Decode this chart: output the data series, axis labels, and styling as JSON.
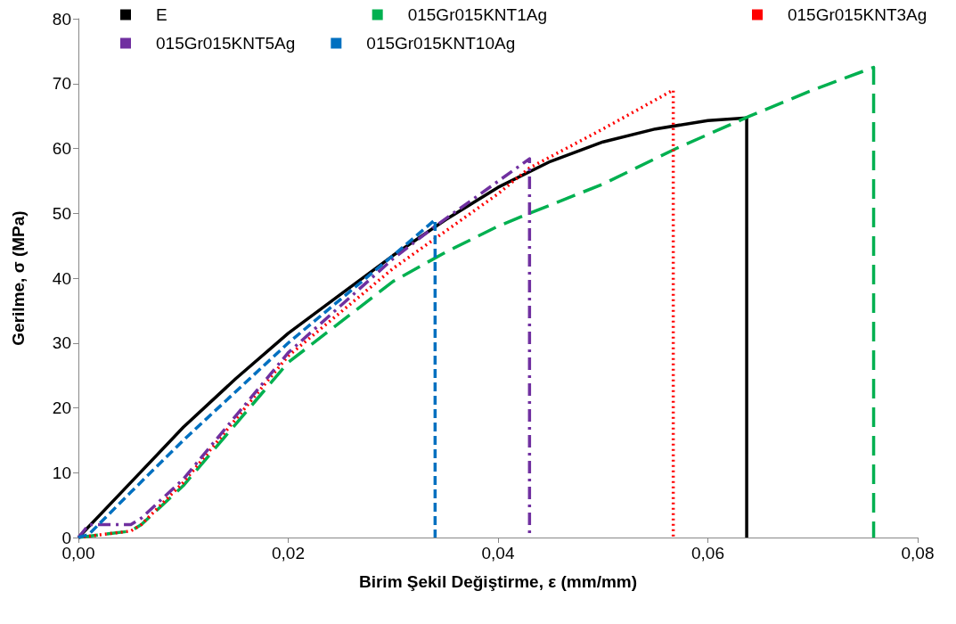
{
  "chart_data": {
    "type": "line",
    "xlabel": "Birim Şekil Değiştirme, ε (mm/mm)",
    "ylabel": "Gerilme, σ (MPa)",
    "xlim": [
      0,
      0.08
    ],
    "xticks": [
      {
        "value": 0,
        "label": "0,00"
      },
      {
        "value": 0.02,
        "label": "0,02"
      },
      {
        "value": 0.04,
        "label": "0,04"
      },
      {
        "value": 0.06,
        "label": "0,06"
      },
      {
        "value": 0.08,
        "label": "0,08"
      }
    ],
    "ylim": [
      0,
      80
    ],
    "yticks": [
      0,
      10,
      20,
      30,
      40,
      50,
      60,
      70,
      80
    ],
    "grid": false,
    "legend": "top",
    "marker": "none",
    "series": [
      {
        "name": "E",
        "color": "#000000",
        "line_style": "solid",
        "x": [
          0,
          0.005,
          0.01,
          0.015,
          0.02,
          0.025,
          0.03,
          0.035,
          0.04,
          0.045,
          0.05,
          0.055,
          0.06,
          0.0637,
          0.0637
        ],
        "values": [
          0,
          8.5,
          17,
          24.5,
          31.5,
          37.5,
          43.5,
          49,
          54,
          58,
          61,
          63,
          64.3,
          64.7,
          0
        ]
      },
      {
        "name": "015Gr015KNT1Ag",
        "color": "#00b050",
        "line_style": "dashed",
        "x": [
          0,
          0.005,
          0.006,
          0.01,
          0.02,
          0.03,
          0.035,
          0.04,
          0.043,
          0.05,
          0.057,
          0.064,
          0.07,
          0.0758,
          0.0758
        ],
        "values": [
          0,
          1,
          2,
          8,
          27,
          39.5,
          44,
          48,
          50,
          54.5,
          60,
          65,
          69,
          72.5,
          0
        ]
      },
      {
        "name": "015Gr015KNT3Ag",
        "color": "#ff0000",
        "line_style": "dotted",
        "x": [
          0,
          0.005,
          0.006,
          0.01,
          0.02,
          0.03,
          0.04,
          0.043,
          0.05,
          0.0567,
          0.0567
        ],
        "values": [
          0,
          1,
          2,
          8.5,
          28,
          41.5,
          53,
          57,
          63,
          69,
          0
        ]
      },
      {
        "name": "015Gr015KNT5Ag",
        "color": "#7030a0",
        "line_style": "dashdot",
        "x": [
          0,
          0.001,
          0.005,
          0.006,
          0.01,
          0.02,
          0.03,
          0.034,
          0.043,
          0.043
        ],
        "values": [
          0,
          2,
          2,
          3,
          9,
          28.5,
          43,
          48,
          58.4,
          0
        ]
      },
      {
        "name": "015Gr015KNT10Ag",
        "color": "#0070c0",
        "line_style": "dashed",
        "x": [
          0,
          0.001,
          0.005,
          0.01,
          0.02,
          0.03,
          0.034,
          0.034
        ],
        "values": [
          0,
          0.5,
          7,
          15,
          30,
          43.5,
          49,
          0
        ]
      }
    ]
  }
}
